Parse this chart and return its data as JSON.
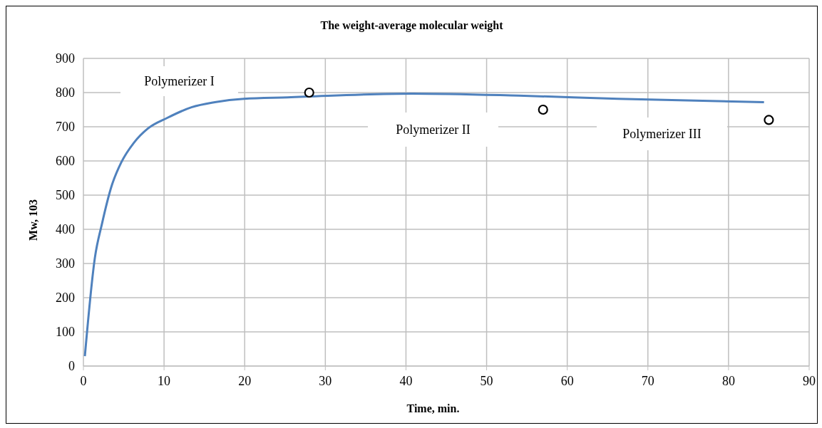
{
  "chart_data": {
    "type": "line",
    "title": "The weight-average molecular weight",
    "xlabel": "Time, min.",
    "ylabel": "Mw, 103",
    "xlim": [
      0,
      90
    ],
    "xticks": [
      0,
      10,
      20,
      30,
      40,
      50,
      60,
      70,
      80,
      90
    ],
    "ylim": [
      0,
      900
    ],
    "yticks": [
      0,
      100,
      200,
      300,
      400,
      500,
      600,
      700,
      800,
      900
    ],
    "grid": true,
    "series": [
      {
        "type": "line",
        "color": "#4f81bd",
        "marker": "none",
        "x": [
          0.18,
          1.43,
          2.3,
          3.5,
          4.7,
          6.25,
          8.0,
          10.4,
          13.4,
          16.3,
          19.9,
          25.3,
          40.8,
          54,
          66.3,
          84.4
        ],
        "values": [
          29,
          318,
          416,
          527,
          596,
          653,
          695,
          726,
          757,
          772,
          782,
          786,
          797,
          791,
          782,
          772
        ]
      },
      {
        "type": "scatter",
        "color": "#000000",
        "marker": "circle",
        "x": [
          28,
          57,
          85
        ],
        "values": [
          800,
          750,
          720
        ]
      }
    ],
    "annotations": [
      "Polymerizer I",
      "Polymerizer II",
      "Polymerizer III"
    ]
  }
}
